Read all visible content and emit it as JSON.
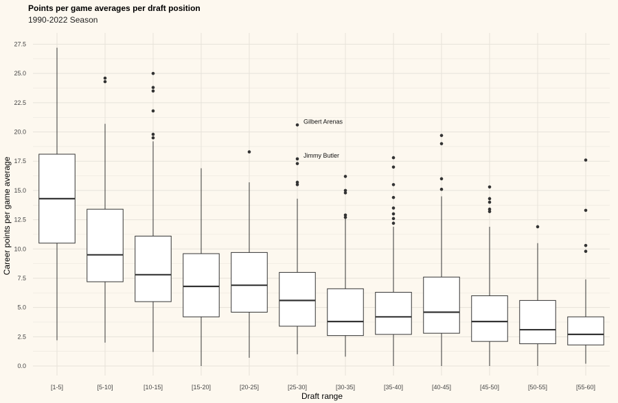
{
  "chart_data": {
    "type": "boxplot",
    "title": "Points per game averages per draft position",
    "subtitle": "1990-2022 Season",
    "xlabel": "Draft range",
    "ylabel": "Career points per game average",
    "ylim": [
      -0.6,
      28.2
    ],
    "yticks": [
      0.0,
      2.5,
      5.0,
      7.5,
      10.0,
      12.5,
      15.0,
      17.5,
      20.0,
      22.5,
      25.0,
      27.5
    ],
    "ytick_labels": [
      "0.0",
      "2.5",
      "5.0",
      "7.5",
      "10.0",
      "12.5",
      "15.0",
      "17.5",
      "20.0",
      "22.5",
      "25.0",
      "27.5"
    ],
    "grid": true,
    "categories": [
      "[1-5]",
      "[5-10]",
      "[10-15]",
      "[15-20]",
      "[20-25]",
      "[25-30]",
      "[30-35]",
      "[35-40]",
      "[40-45]",
      "[45-50]",
      "[50-55]",
      "[55-60]"
    ],
    "boxes": [
      {
        "min": 2.2,
        "q1": 10.5,
        "median": 14.3,
        "q3": 18.1,
        "max": 27.2,
        "outliers": []
      },
      {
        "min": 2.0,
        "q1": 7.2,
        "median": 9.5,
        "q3": 13.4,
        "max": 20.7,
        "outliers": [
          24.3,
          24.6
        ]
      },
      {
        "min": 1.2,
        "q1": 5.5,
        "median": 7.8,
        "q3": 11.1,
        "max": 19.2,
        "outliers": [
          19.5,
          19.8,
          21.8,
          23.5,
          23.8,
          25.0
        ]
      },
      {
        "min": 0.0,
        "q1": 4.2,
        "median": 6.8,
        "q3": 9.6,
        "max": 16.9,
        "outliers": []
      },
      {
        "min": 0.7,
        "q1": 4.6,
        "median": 6.9,
        "q3": 9.7,
        "max": 15.7,
        "outliers": [
          18.3
        ]
      },
      {
        "min": 1.0,
        "q1": 3.4,
        "median": 5.6,
        "q3": 8.0,
        "max": 14.3,
        "outliers": [
          15.5,
          15.7,
          17.3,
          17.7,
          20.6
        ]
      },
      {
        "min": 0.8,
        "q1": 2.6,
        "median": 3.8,
        "q3": 6.6,
        "max": 12.6,
        "outliers": [
          12.7,
          12.9,
          14.8,
          15.0,
          16.2
        ]
      },
      {
        "min": 0.0,
        "q1": 2.7,
        "median": 4.2,
        "q3": 6.3,
        "max": 11.9,
        "outliers": [
          12.2,
          12.6,
          13.0,
          13.5,
          14.4,
          15.5,
          17.0,
          17.8
        ]
      },
      {
        "min": 0.0,
        "q1": 2.8,
        "median": 4.6,
        "q3": 7.6,
        "max": 14.5,
        "outliers": [
          15.1,
          16.0,
          19.0,
          19.7
        ]
      },
      {
        "min": 0.0,
        "q1": 2.1,
        "median": 3.8,
        "q3": 6.0,
        "max": 11.9,
        "outliers": [
          13.2,
          13.4,
          14.0,
          14.3,
          15.3
        ]
      },
      {
        "min": 0.0,
        "q1": 1.9,
        "median": 3.1,
        "q3": 5.6,
        "max": 10.5,
        "outliers": [
          11.9
        ]
      },
      {
        "min": 0.2,
        "q1": 1.8,
        "median": 2.7,
        "q3": 4.2,
        "max": 7.4,
        "outliers": [
          9.8,
          10.3,
          13.3,
          17.6
        ]
      }
    ],
    "annotations": [
      {
        "text": "Gilbert Arenas",
        "category": "[25-30]",
        "y": 20.6
      },
      {
        "text": "Jimmy Butler",
        "category": "[25-30]",
        "y": 17.7
      }
    ],
    "colors": {
      "background": "#fdf8ef",
      "box_fill": "#ffffff",
      "box_stroke": "#333333",
      "grid": "#e6e2da",
      "point": "#333333"
    }
  }
}
